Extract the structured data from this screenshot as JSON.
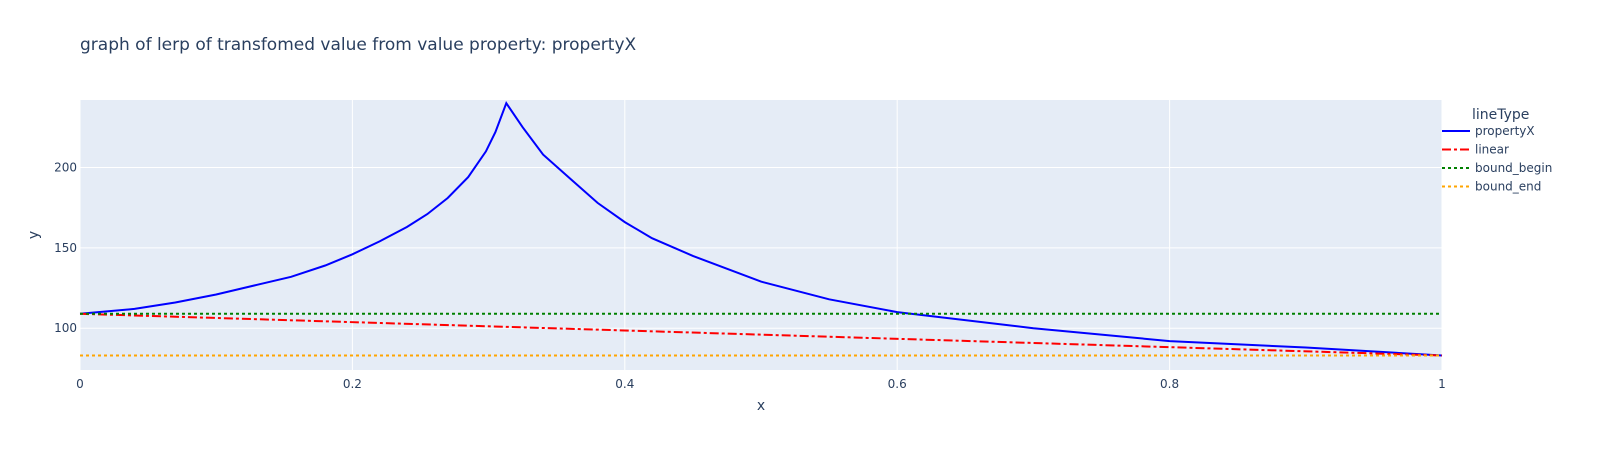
{
  "chart_data": {
    "type": "line",
    "title": "graph of lerp of transfomed value from value property:  propertyX",
    "xlabel": "x",
    "ylabel": "y",
    "xlim": [
      0,
      1
    ],
    "ylim": [
      74,
      242
    ],
    "x_ticks": [
      0,
      0.2,
      0.4,
      0.6,
      0.8,
      1
    ],
    "x_tick_labels": [
      "0",
      "0.2",
      "0.4",
      "0.6",
      "0.8",
      "1"
    ],
    "y_ticks": [
      100,
      150,
      200
    ],
    "y_tick_labels": [
      "100",
      "150",
      "200"
    ],
    "grid": true,
    "plot_background": "#e5ecf6",
    "legend": {
      "title": "lineType",
      "placement": "right"
    },
    "series": [
      {
        "name": "propertyX",
        "color": "#0000ff",
        "dash": "solid",
        "points": [
          [
            0,
            109
          ],
          [
            0.04,
            112
          ],
          [
            0.07,
            116
          ],
          [
            0.1,
            121
          ],
          [
            0.13,
            127
          ],
          [
            0.155,
            132
          ],
          [
            0.18,
            139
          ],
          [
            0.2,
            146
          ],
          [
            0.22,
            154
          ],
          [
            0.24,
            163
          ],
          [
            0.255,
            171
          ],
          [
            0.27,
            181
          ],
          [
            0.285,
            194
          ],
          [
            0.298,
            210
          ],
          [
            0.305,
            222
          ],
          [
            0.313,
            240
          ],
          [
            0.325,
            225
          ],
          [
            0.34,
            208
          ],
          [
            0.36,
            193
          ],
          [
            0.38,
            178
          ],
          [
            0.4,
            166
          ],
          [
            0.42,
            156
          ],
          [
            0.45,
            145
          ],
          [
            0.5,
            129
          ],
          [
            0.55,
            118
          ],
          [
            0.6,
            110
          ],
          [
            0.7,
            100
          ],
          [
            0.8,
            92
          ],
          [
            0.9,
            88
          ],
          [
            1,
            83
          ]
        ]
      },
      {
        "name": "linear",
        "color": "#ff0000",
        "dash": "dashdot",
        "points": [
          [
            0,
            109
          ],
          [
            1,
            83
          ]
        ]
      },
      {
        "name": "bound_begin",
        "color": "#008000",
        "dash": "dot",
        "points": [
          [
            0,
            109
          ],
          [
            1,
            109
          ]
        ]
      },
      {
        "name": "bound_end",
        "color": "#ffa500",
        "dash": "dot",
        "points": [
          [
            0,
            83
          ],
          [
            1,
            83
          ]
        ]
      }
    ]
  }
}
